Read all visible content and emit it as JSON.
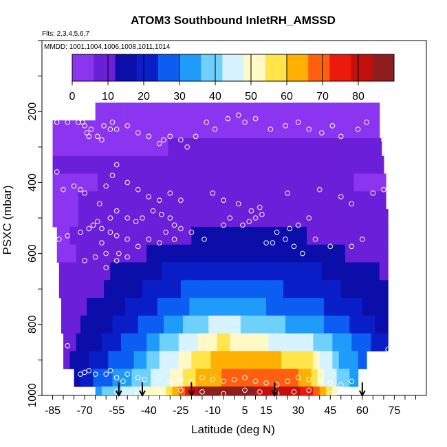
{
  "chart_data": {
    "type": "heatmap",
    "title": "ATOM3 Southbound InletRH_AMSSD",
    "flights_label": "Flts: 2,3,4,5,6,7",
    "dates_label": "MMDD: 1001,1004,1006,1008,1011,1014",
    "xlabel": "Latitude (deg N)",
    "ylabel": "PSXC (mbar)",
    "xlim": [
      -90,
      90
    ],
    "ylim": [
      1000,
      0
    ],
    "x_tick_labels": [
      "-85",
      "-70",
      "-55",
      "-40",
      "-25",
      "-10",
      "5",
      "15",
      "30",
      "45",
      "60",
      "75"
    ],
    "y_tick_labels": [
      "200",
      "400",
      "600",
      "800",
      "1000"
    ],
    "colorbar": {
      "min": 0,
      "max": 90,
      "tick_labels": [
        "0",
        "10",
        "20",
        "30",
        "40",
        "50",
        "60",
        "70",
        "80"
      ],
      "colors": [
        "#8b35f0",
        "#6c1fd8",
        "#0b0ea8",
        "#0a1ec8",
        "#0c5ef2",
        "#1f9cfb",
        "#6fd0fc",
        "#d7f3ff",
        "#fff9c8",
        "#ffe44a",
        "#ffb000",
        "#ff6010",
        "#ec1a0a",
        "#c4100c",
        "#8e1e20"
      ]
    },
    "arrow_latitudes": [
      -54,
      -43,
      -20,
      19,
      60
    ],
    "pressure_rows": [
      {
        "p": 200,
        "lat_start": -65,
        "lat_end": 68,
        "rh": [
          [
            -65,
            5
          ],
          [
            68,
            5
          ]
        ]
      },
      {
        "p": 250,
        "lat_start": -85,
        "lat_end": 68,
        "rh": [
          [
            -85,
            5
          ],
          [
            68,
            5
          ]
        ]
      },
      {
        "p": 300,
        "lat_start": -85,
        "lat_end": 69,
        "rh": [
          [
            -85,
            5
          ],
          [
            -30,
            6
          ],
          [
            0,
            8
          ],
          [
            30,
            7
          ],
          [
            69,
            6
          ]
        ]
      },
      {
        "p": 350,
        "lat_start": -85,
        "lat_end": 70,
        "rh": [
          [
            -85,
            6
          ],
          [
            -30,
            8
          ],
          [
            -10,
            9
          ],
          [
            10,
            8
          ],
          [
            40,
            7
          ],
          [
            70,
            6
          ]
        ]
      },
      {
        "p": 400,
        "lat_start": -85,
        "lat_end": 71,
        "rh": [
          [
            -85,
            5
          ],
          [
            -40,
            7
          ],
          [
            -10,
            9
          ],
          [
            15,
            8
          ],
          [
            40,
            7
          ],
          [
            71,
            5
          ]
        ]
      },
      {
        "p": 450,
        "lat_start": -85,
        "lat_end": 71,
        "rh": [
          [
            -85,
            5
          ],
          [
            -45,
            8
          ],
          [
            -25,
            9
          ],
          [
            -5,
            11
          ],
          [
            15,
            10
          ],
          [
            40,
            9
          ],
          [
            60,
            7
          ],
          [
            71,
            6
          ]
        ]
      },
      {
        "p": 500,
        "lat_start": -85,
        "lat_end": 72,
        "rh": [
          [
            -85,
            5
          ],
          [
            -50,
            8
          ],
          [
            -25,
            10
          ],
          [
            -5,
            12
          ],
          [
            12,
            11
          ],
          [
            35,
            10
          ],
          [
            60,
            8
          ],
          [
            72,
            7
          ]
        ]
      },
      {
        "p": 550,
        "lat_start": -83,
        "lat_end": 72,
        "rh": [
          [
            -83,
            5
          ],
          [
            -55,
            9
          ],
          [
            -30,
            11
          ],
          [
            -10,
            13
          ],
          [
            12,
            14
          ],
          [
            35,
            12
          ],
          [
            60,
            10
          ],
          [
            72,
            8
          ]
        ]
      },
      {
        "p": 600,
        "lat_start": -83,
        "lat_end": 72,
        "rh": [
          [
            -83,
            5
          ],
          [
            -60,
            8
          ],
          [
            -40,
            12
          ],
          [
            -20,
            15
          ],
          [
            0,
            17
          ],
          [
            15,
            16
          ],
          [
            35,
            14
          ],
          [
            60,
            11
          ],
          [
            72,
            9
          ]
        ]
      },
      {
        "p": 650,
        "lat_start": -82,
        "lat_end": 72,
        "rh": [
          [
            -82,
            6
          ],
          [
            -65,
            10
          ],
          [
            -45,
            15
          ],
          [
            -25,
            20
          ],
          [
            -5,
            23
          ],
          [
            15,
            21
          ],
          [
            35,
            19
          ],
          [
            60,
            14
          ],
          [
            72,
            11
          ]
        ]
      },
      {
        "p": 700,
        "lat_start": -82,
        "lat_end": 72,
        "rh": [
          [
            -82,
            6
          ],
          [
            -65,
            11
          ],
          [
            -45,
            17
          ],
          [
            -25,
            24
          ],
          [
            -5,
            28
          ],
          [
            15,
            25
          ],
          [
            35,
            22
          ],
          [
            60,
            15
          ],
          [
            72,
            12
          ]
        ]
      },
      {
        "p": 750,
        "lat_start": -81,
        "lat_end": 72,
        "rh": [
          [
            -81,
            7
          ],
          [
            -65,
            13
          ],
          [
            -45,
            20
          ],
          [
            -25,
            28
          ],
          [
            -5,
            36
          ],
          [
            15,
            30
          ],
          [
            35,
            26
          ],
          [
            60,
            18
          ],
          [
            72,
            13
          ]
        ]
      },
      {
        "p": 800,
        "lat_start": -81,
        "lat_end": 72,
        "rh": [
          [
            -81,
            7
          ],
          [
            -65,
            15
          ],
          [
            -45,
            24
          ],
          [
            -25,
            35
          ],
          [
            -5,
            45
          ],
          [
            15,
            38
          ],
          [
            35,
            34
          ],
          [
            55,
            24
          ],
          [
            72,
            15
          ]
        ]
      },
      {
        "p": 850,
        "lat_start": -80,
        "lat_end": 72,
        "rh": [
          [
            -80,
            8
          ],
          [
            -65,
            17
          ],
          [
            -45,
            28
          ],
          [
            -25,
            42
          ],
          [
            -5,
            55
          ],
          [
            15,
            48
          ],
          [
            35,
            44
          ],
          [
            55,
            30
          ],
          [
            72,
            18
          ]
        ]
      },
      {
        "p": 900,
        "lat_start": -80,
        "lat_end": 62,
        "rh": [
          [
            -80,
            9
          ],
          [
            -65,
            20
          ],
          [
            -45,
            32
          ],
          [
            -25,
            50
          ],
          [
            -5,
            64
          ],
          [
            15,
            62
          ],
          [
            35,
            55
          ],
          [
            50,
            36
          ],
          [
            62,
            25
          ]
        ]
      },
      {
        "p": 950,
        "lat_start": -75,
        "lat_end": 58,
        "rh": [
          [
            -75,
            15
          ],
          [
            -65,
            26
          ],
          [
            -45,
            38
          ],
          [
            -30,
            48
          ],
          [
            -15,
            62
          ],
          [
            5,
            70
          ],
          [
            15,
            72
          ],
          [
            30,
            68
          ],
          [
            45,
            45
          ],
          [
            58,
            30
          ]
        ]
      },
      {
        "p": 1000,
        "lat_start": -65,
        "lat_end": 48,
        "rh": [
          [
            -65,
            35
          ],
          [
            -45,
            48
          ],
          [
            -30,
            55
          ],
          [
            -15,
            85
          ],
          [
            5,
            86
          ],
          [
            15,
            82
          ],
          [
            25,
            84
          ],
          [
            35,
            75
          ],
          [
            48,
            50
          ]
        ]
      }
    ],
    "sample_points": [
      [
        -83,
        230
      ],
      [
        -78,
        230
      ],
      [
        -73,
        230
      ],
      [
        -71,
        230
      ],
      [
        -70,
        240
      ],
      [
        -69,
        260
      ],
      [
        -67,
        250
      ],
      [
        -68,
        270
      ],
      [
        -64,
        270
      ],
      [
        -62,
        280
      ],
      [
        -61,
        240
      ],
      [
        -58,
        250
      ],
      [
        -57,
        230
      ],
      [
        -55,
        250
      ],
      [
        -50,
        240
      ],
      [
        -45,
        260
      ],
      [
        -40,
        270
      ],
      [
        -35,
        290
      ],
      [
        -33,
        280
      ],
      [
        -30,
        270
      ],
      [
        -25,
        280
      ],
      [
        -22,
        300
      ],
      [
        -18,
        270
      ],
      [
        -13,
        230
      ],
      [
        -9,
        250
      ],
      [
        -3,
        220
      ],
      [
        2,
        210
      ],
      [
        5,
        230
      ],
      [
        10,
        220
      ],
      [
        17,
        250
      ],
      [
        24,
        240
      ],
      [
        30,
        230
      ],
      [
        35,
        250
      ],
      [
        41,
        260
      ],
      [
        46,
        240
      ],
      [
        50,
        270
      ],
      [
        58,
        250
      ],
      [
        62,
        230
      ],
      [
        70,
        280
      ],
      [
        -83,
        370
      ],
      [
        -80,
        420
      ],
      [
        -75,
        410
      ],
      [
        -72,
        420
      ],
      [
        -70,
        430
      ],
      [
        -63,
        460
      ],
      [
        -60,
        410
      ],
      [
        -57,
        380
      ],
      [
        -55,
        350
      ],
      [
        -50,
        400
      ],
      [
        -45,
        420
      ],
      [
        -40,
        440
      ],
      [
        -35,
        450
      ],
      [
        -30,
        430
      ],
      [
        -25,
        450
      ],
      [
        -10,
        430
      ],
      [
        -5,
        450
      ],
      [
        2,
        460
      ],
      [
        8,
        480
      ],
      [
        12,
        470
      ],
      [
        25,
        430
      ],
      [
        40,
        420
      ],
      [
        50,
        440
      ],
      [
        55,
        460
      ],
      [
        65,
        430
      ],
      [
        70,
        420
      ],
      [
        -82,
        560
      ],
      [
        -78,
        550
      ],
      [
        -72,
        540
      ],
      [
        -68,
        530
      ],
      [
        -66,
        520
      ],
      [
        -64,
        510
      ],
      [
        -62,
        530
      ],
      [
        -58,
        500
      ],
      [
        -55,
        480
      ],
      [
        -50,
        500
      ],
      [
        -46,
        510
      ],
      [
        -43,
        500
      ],
      [
        -38,
        480
      ],
      [
        -34,
        490
      ],
      [
        -30,
        500
      ],
      [
        -28,
        560
      ],
      [
        -20,
        540
      ],
      [
        -14,
        560
      ],
      [
        -5,
        520
      ],
      [
        -2,
        500
      ],
      [
        4,
        520
      ],
      [
        7,
        510
      ],
      [
        10,
        500
      ],
      [
        13,
        490
      ],
      [
        20,
        540
      ],
      [
        24,
        560
      ],
      [
        26,
        530
      ],
      [
        30,
        520
      ],
      [
        35,
        500
      ],
      [
        38,
        560
      ],
      [
        45,
        580
      ],
      [
        55,
        580
      ],
      [
        60,
        560
      ],
      [
        -62,
        570
      ],
      [
        -58,
        540
      ],
      [
        -55,
        550
      ],
      [
        -50,
        560
      ],
      [
        -45,
        580
      ],
      [
        -40,
        560
      ],
      [
        -35,
        570
      ],
      [
        -32,
        540
      ],
      [
        -28,
        520
      ],
      [
        -25,
        530
      ],
      [
        15,
        570
      ],
      [
        18,
        570
      ],
      [
        28,
        580
      ],
      [
        32,
        600
      ],
      [
        -60,
        600
      ],
      [
        -55,
        620
      ],
      [
        -50,
        610
      ],
      [
        -70,
        620
      ],
      [
        -65,
        610
      ],
      [
        -60,
        640
      ],
      [
        -54,
        600
      ],
      [
        -78,
        860
      ],
      [
        72,
        870
      ],
      [
        -72,
        940
      ],
      [
        -70,
        935
      ],
      [
        -68,
        930
      ],
      [
        -65,
        940
      ],
      [
        -60,
        940
      ],
      [
        -58,
        930
      ],
      [
        -55,
        950
      ],
      [
        -52,
        960
      ],
      [
        -50,
        940
      ],
      [
        -45,
        950
      ],
      [
        -42,
        955
      ],
      [
        -35,
        950
      ],
      [
        -30,
        960
      ],
      [
        -25,
        955
      ],
      [
        -20,
        960
      ],
      [
        -15,
        950
      ],
      [
        -10,
        955
      ],
      [
        -5,
        960
      ],
      [
        0,
        955
      ],
      [
        5,
        950
      ],
      [
        10,
        960
      ],
      [
        15,
        965
      ],
      [
        20,
        970
      ],
      [
        25,
        960
      ],
      [
        30,
        950
      ],
      [
        35,
        955
      ],
      [
        40,
        960
      ],
      [
        45,
        965
      ],
      [
        50,
        970
      ],
      [
        55,
        960
      ],
      [
        60,
        955
      ],
      [
        65,
        950
      ],
      [
        70,
        945
      ],
      [
        -55,
        990
      ],
      [
        -45,
        995
      ],
      [
        -35,
        990
      ],
      [
        -25,
        985
      ],
      [
        -15,
        990
      ],
      [
        -5,
        995
      ],
      [
        5,
        985
      ],
      [
        12,
        990
      ],
      [
        20,
        995
      ],
      [
        28,
        990
      ],
      [
        35,
        985
      ],
      [
        45,
        995
      ],
      [
        53,
        990
      ],
      [
        62,
        960
      ],
      [
        68,
        950
      ]
    ]
  }
}
